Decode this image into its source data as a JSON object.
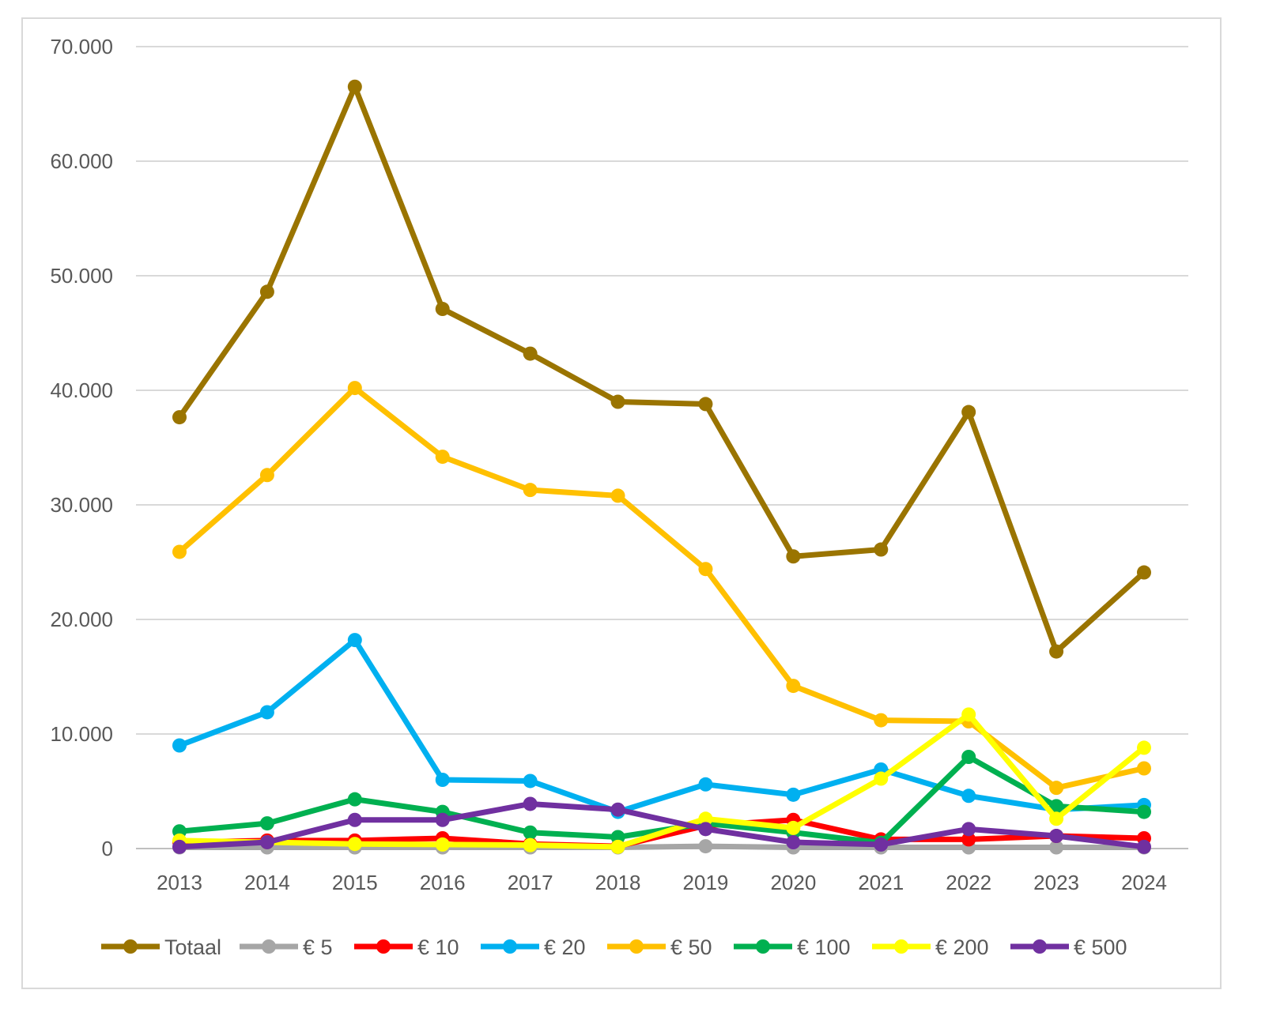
{
  "chart_data": {
    "type": "line",
    "title": "",
    "xlabel": "",
    "ylabel": "",
    "categories": [
      "2013",
      "2014",
      "2015",
      "2016",
      "2017",
      "2018",
      "2019",
      "2020",
      "2021",
      "2022",
      "2023",
      "2024"
    ],
    "ylim": [
      0,
      70000
    ],
    "yticks": [
      0,
      10000,
      20000,
      30000,
      40000,
      50000,
      60000,
      70000
    ],
    "ytick_labels": [
      "0",
      "10.000",
      "20.000",
      "30.000",
      "40.000",
      "50.000",
      "60.000",
      "70.000"
    ],
    "grid": true,
    "legend_position": "bottom",
    "series": [
      {
        "name": "Totaal",
        "color": "#9a7400",
        "values": [
          37650,
          48600,
          66500,
          47100,
          43200,
          39000,
          38800,
          25500,
          26100,
          38100,
          17200,
          24100
        ]
      },
      {
        "name": "€ 5",
        "color": "#a6a6a6",
        "values": [
          100,
          100,
          100,
          100,
          100,
          100,
          200,
          100,
          100,
          100,
          100,
          100
        ]
      },
      {
        "name": "€ 10",
        "color": "#ff0000",
        "values": [
          550,
          700,
          700,
          900,
          400,
          200,
          2000,
          2500,
          800,
          800,
          1100,
          900
        ]
      },
      {
        "name": "€ 20",
        "color": "#00b0f0",
        "values": [
          9000,
          11900,
          18200,
          6000,
          5900,
          3200,
          5600,
          4700,
          6900,
          4600,
          3400,
          3800
        ]
      },
      {
        "name": "€ 50",
        "color": "#ffc000",
        "values": [
          25900,
          32600,
          40200,
          34200,
          31300,
          30800,
          24400,
          14200,
          11200,
          11100,
          5300,
          7000
        ]
      },
      {
        "name": "€ 100",
        "color": "#00b050",
        "values": [
          1500,
          2200,
          4300,
          3200,
          1400,
          1000,
          2200,
          1400,
          500,
          8000,
          3700,
          3200
        ]
      },
      {
        "name": "€ 200",
        "color": "#ffff00",
        "values": [
          700,
          550,
          400,
          350,
          300,
          150,
          2600,
          1800,
          6100,
          11700,
          2600,
          8800
        ]
      },
      {
        "name": "€ 500",
        "color": "#7030a0",
        "values": [
          150,
          550,
          2500,
          2500,
          3900,
          3400,
          1700,
          550,
          350,
          1700,
          1100,
          150
        ]
      }
    ]
  }
}
